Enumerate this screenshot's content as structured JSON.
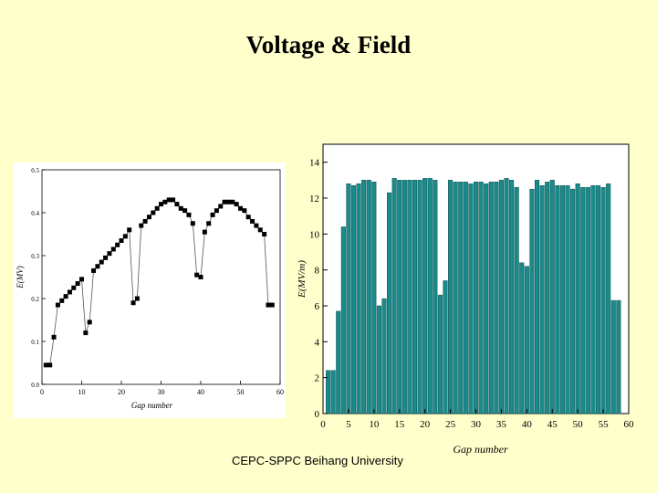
{
  "slide": {
    "title": "Voltage & Field",
    "footer": "CEPC-SPPC Beihang University"
  },
  "colors": {
    "background": "#ffffcc",
    "bar_fill": "#1a8a8a",
    "bar_stroke": "#0c5050",
    "marker": "#000000"
  },
  "chart_data": [
    {
      "type": "scatter",
      "title": "",
      "xlabel": "Gap number",
      "ylabel": "E(MV)",
      "xlim": [
        0,
        60
      ],
      "ylim": [
        0,
        0.5
      ],
      "xticks": [
        "0",
        "10",
        "20",
        "30",
        "40",
        "50",
        "60"
      ],
      "yticks": [
        "0.0",
        "0.1",
        "0.2",
        "0.3",
        "0.4",
        "0.5"
      ],
      "grid": false,
      "legend": "none",
      "x": [
        1,
        2,
        3,
        4,
        5,
        6,
        7,
        8,
        9,
        10,
        11,
        12,
        13,
        14,
        15,
        16,
        17,
        18,
        19,
        20,
        21,
        22,
        23,
        24,
        25,
        26,
        27,
        28,
        29,
        30,
        31,
        32,
        33,
        34,
        35,
        36,
        37,
        38,
        39,
        40,
        41,
        42,
        43,
        44,
        45,
        46,
        47,
        48,
        49,
        50,
        51,
        52,
        53,
        54,
        55,
        56,
        57,
        58
      ],
      "y": [
        0.045,
        0.045,
        0.11,
        0.185,
        0.195,
        0.205,
        0.215,
        0.225,
        0.235,
        0.245,
        0.12,
        0.145,
        0.265,
        0.275,
        0.285,
        0.295,
        0.305,
        0.315,
        0.325,
        0.335,
        0.345,
        0.36,
        0.19,
        0.2,
        0.37,
        0.38,
        0.39,
        0.4,
        0.41,
        0.42,
        0.425,
        0.43,
        0.43,
        0.42,
        0.41,
        0.405,
        0.395,
        0.375,
        0.255,
        0.25,
        0.355,
        0.375,
        0.395,
        0.405,
        0.415,
        0.425,
        0.425,
        0.425,
        0.42,
        0.41,
        0.405,
        0.39,
        0.38,
        0.37,
        0.36,
        0.35,
        0.185,
        0.185
      ]
    },
    {
      "type": "bar",
      "title": "",
      "xlabel": "Gap number",
      "ylabel": "E(MV/m)",
      "xlim": [
        0,
        60
      ],
      "ylim": [
        0,
        15
      ],
      "xticks": [
        "0",
        "5",
        "10",
        "15",
        "20",
        "25",
        "30",
        "35",
        "40",
        "45",
        "50",
        "55",
        "60"
      ],
      "yticks": [
        "0",
        "2",
        "4",
        "6",
        "8",
        "10",
        "12",
        "14"
      ],
      "grid": false,
      "legend": "none",
      "x": [
        1,
        2,
        3,
        4,
        5,
        6,
        7,
        8,
        9,
        10,
        11,
        12,
        13,
        14,
        15,
        16,
        17,
        18,
        19,
        20,
        21,
        22,
        23,
        24,
        25,
        26,
        27,
        28,
        29,
        30,
        31,
        32,
        33,
        34,
        35,
        36,
        37,
        38,
        39,
        40,
        41,
        42,
        43,
        44,
        45,
        46,
        47,
        48,
        49,
        50,
        51,
        52,
        53,
        54,
        55,
        56,
        57,
        58
      ],
      "values": [
        2.4,
        2.4,
        5.7,
        10.4,
        12.8,
        12.7,
        12.8,
        13.0,
        13.0,
        12.9,
        6.0,
        6.4,
        12.3,
        13.1,
        13.0,
        13.0,
        13.0,
        13.0,
        13.0,
        13.1,
        13.1,
        13.0,
        6.6,
        7.4,
        13.0,
        12.9,
        12.9,
        12.9,
        12.8,
        12.9,
        12.9,
        12.8,
        12.9,
        12.9,
        13.0,
        13.1,
        13.0,
        12.6,
        8.4,
        8.2,
        12.5,
        13.0,
        12.7,
        12.9,
        13.0,
        12.7,
        12.7,
        12.7,
        12.5,
        12.8,
        12.6,
        12.6,
        12.7,
        12.7,
        12.6,
        12.8,
        6.3,
        6.3
      ]
    }
  ]
}
